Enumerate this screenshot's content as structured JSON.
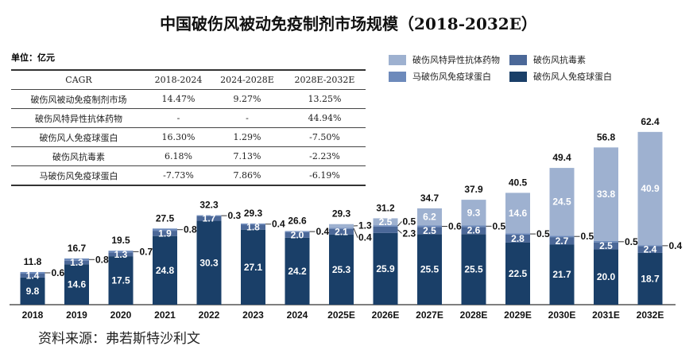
{
  "title": "中国破伤风被动免疫制剂市场规模（2018-2032E）",
  "unit": "单位：亿元",
  "table": {
    "header": [
      "CAGR",
      "2018-2024",
      "2024-2028E",
      "2028E-2032E"
    ],
    "rows": [
      [
        "破伤风被动免疫制剂市场",
        "14.47%",
        "9.27%",
        "13.25%"
      ],
      [
        "破伤风特异性抗体药物",
        "-",
        "-",
        "44.94%"
      ],
      [
        "破伤风人免疫球蛋白",
        "16.30%",
        "1.29%",
        "-7.50%"
      ],
      [
        "破伤风抗毒素",
        "6.18%",
        "7.13%",
        "-2.23%"
      ],
      [
        "马破伤风免疫球蛋白",
        "-7.73%",
        "7.86%",
        "-6.19%"
      ]
    ]
  },
  "source": "资料来源：弗若斯特沙利文",
  "chart_data": {
    "type": "bar",
    "stacked": true,
    "categories": [
      "2018",
      "2019",
      "2020",
      "2021",
      "2022",
      "2023",
      "2024",
      "2025E",
      "2026E",
      "2027E",
      "2028E",
      "2029E",
      "2030E",
      "2031E",
      "2032E"
    ],
    "series": [
      {
        "name": "破伤风人免疫球蛋白",
        "color": "#1a3f68",
        "values": [
          9.8,
          14.6,
          17.5,
          24.8,
          30.3,
          27.1,
          24.2,
          25.3,
          25.9,
          25.5,
          25.5,
          22.5,
          21.7,
          20.0,
          18.7
        ]
      },
      {
        "name": "破伤风抗毒素",
        "color": "#4b6898",
        "values": [
          1.4,
          1.3,
          1.3,
          1.9,
          1.7,
          1.8,
          2.0,
          2.1,
          2.3,
          2.5,
          2.6,
          2.8,
          2.7,
          2.5,
          2.4
        ]
      },
      {
        "name": "马破伤风免疫球蛋白",
        "color": "#6d8abb",
        "values": [
          0.6,
          0.8,
          0.7,
          0.8,
          0.3,
          0.4,
          0.4,
          0.4,
          0.5,
          0.6,
          0.5,
          0.5,
          0.5,
          0.5,
          0.4
        ]
      },
      {
        "name": "破伤风特异性抗体药物",
        "color": "#9eb1d0",
        "values": [
          0,
          0,
          0,
          0,
          0,
          0,
          0,
          1.3,
          2.5,
          6.2,
          9.3,
          14.6,
          24.5,
          33.8,
          40.9
        ]
      }
    ],
    "totals": [
      11.8,
      16.7,
      19.5,
      27.5,
      32.3,
      29.3,
      26.6,
      29.3,
      31.2,
      34.7,
      37.9,
      40.5,
      49.4,
      56.8,
      62.4
    ],
    "legend_order": [
      "破伤风特异性抗体药物",
      "破伤风抗毒素",
      "马破伤风免疫球蛋白",
      "破伤风人免疫球蛋白"
    ],
    "legend_position": "top-right",
    "ylim": [
      0,
      65
    ],
    "grid": false
  }
}
